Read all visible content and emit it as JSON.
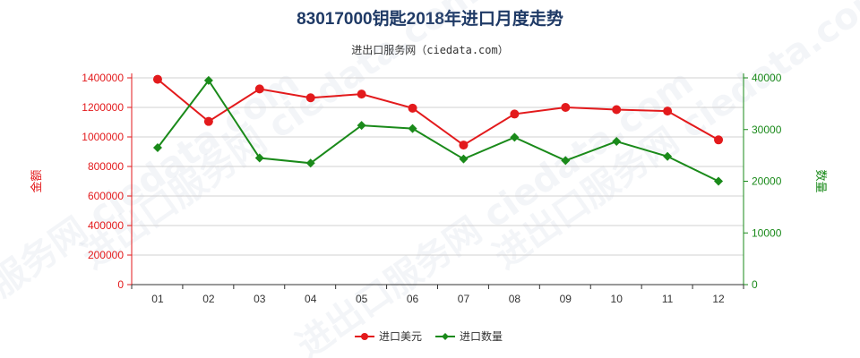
{
  "title": "83017000钥匙2018年进口月度走势",
  "subtitle": "进出口服务网（ciedata.com）",
  "watermark": "进出口服务网 ciedata.com",
  "colors": {
    "left_series": "#e31a1c",
    "right_series": "#1a8a1a",
    "axis_left": "#e31a1c",
    "axis_right": "#1a8a1a",
    "title": "#1f3a66",
    "grid": "#d0d0d0"
  },
  "chart_data": {
    "type": "line",
    "categories": [
      "01",
      "02",
      "03",
      "04",
      "05",
      "06",
      "07",
      "08",
      "09",
      "10",
      "11",
      "12"
    ],
    "series": [
      {
        "name": "进口美元",
        "axis": "left",
        "marker": "circle",
        "values": [
          1390000,
          1105000,
          1325000,
          1265000,
          1290000,
          1195000,
          945000,
          1155000,
          1200000,
          1185000,
          1175000,
          980000
        ]
      },
      {
        "name": "进口数量",
        "axis": "right",
        "marker": "diamond",
        "values": [
          26500,
          39500,
          24500,
          23500,
          30800,
          30200,
          24300,
          28500,
          24000,
          27700,
          24800,
          20000
        ]
      }
    ],
    "ylabel_left": "金额",
    "ylabel_right": "数量",
    "ylim_left": [
      0,
      1400000
    ],
    "ylim_right": [
      0,
      40000
    ],
    "yticks_left": [
      "0",
      "200000",
      "400000",
      "600000",
      "800000",
      "1000000",
      "1200000",
      "1400000"
    ],
    "yticks_right": [
      "0",
      "10000",
      "20000",
      "30000",
      "40000"
    ],
    "grid": true,
    "legend_position": "bottom-center"
  }
}
